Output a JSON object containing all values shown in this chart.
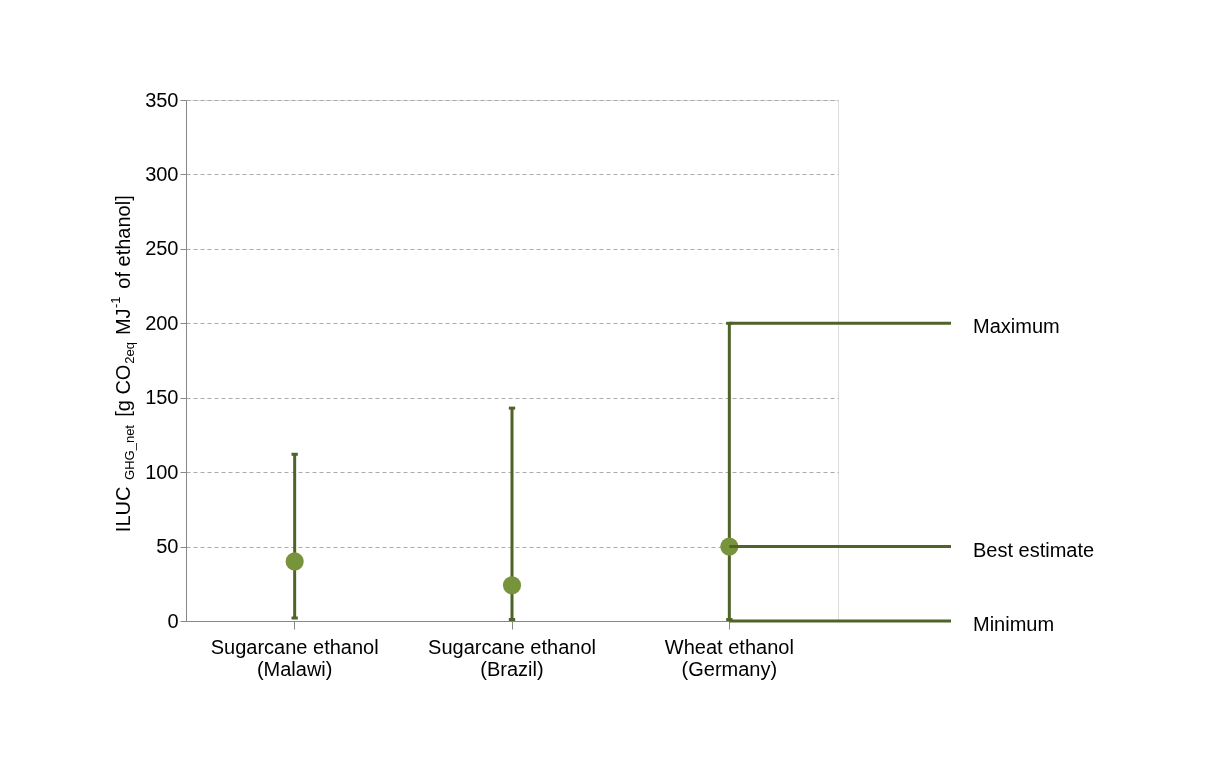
{
  "chart_data": {
    "type": "scatter",
    "ylabel": "ILUC$_{GHG_net}$ [g CO$_{2eq}$ MJ$^{-1}$ of ethanol]",
    "categories": [
      "Sugarcane ethanol (Malawi)",
      "Sugarcane ethanol (Brazil)",
      "Wheat ethanol (Germany)"
    ],
    "series": [
      {
        "color": "#77933c",
        "values": [
          40,
          24,
          50
        ],
        "errors": [
          [
            2,
            112
          ],
          [
            1,
            143
          ],
          [
            1,
            200
          ]
        ]
      }
    ],
    "ylim": [
      0,
      350
    ],
    "yticks": [
      0,
      50,
      100,
      150,
      200,
      250,
      300,
      350
    ],
    "grid": "y",
    "marker": "circle",
    "annotations": [
      {
        "text": "Maximum",
        "x": "Wheat ethanol (Germany)",
        "y": 200
      },
      {
        "text": "Best estimate",
        "x": "Wheat ethanol (Germany)",
        "y": 50
      },
      {
        "text": "Minimum",
        "x": "Wheat ethanol (Germany)",
        "y": 0
      }
    ]
  }
}
